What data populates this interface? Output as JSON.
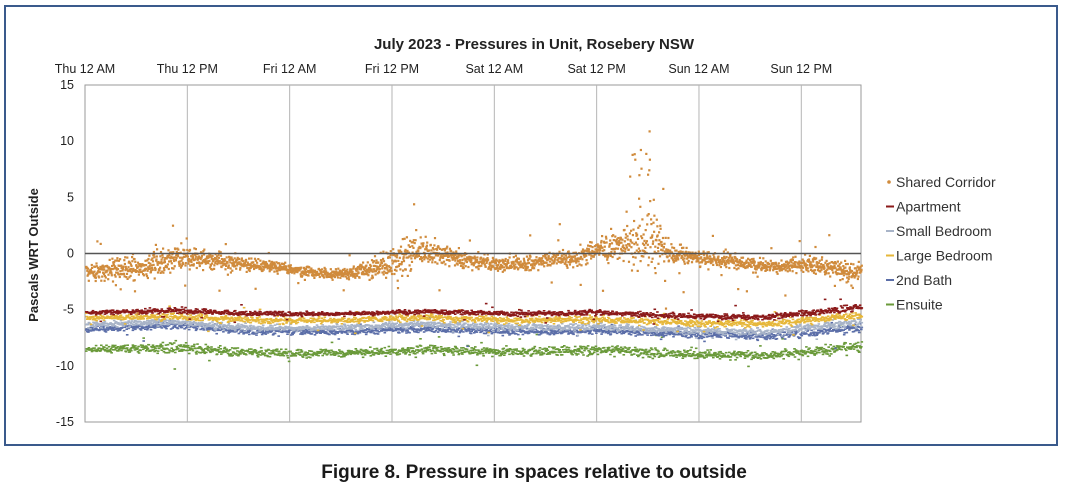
{
  "caption": "Figure 8. Pressure in spaces relative to outside",
  "chart_data": {
    "type": "scatter",
    "title": "July 2023 - Pressures in Unit, Rosebery NSW",
    "xlabel": "",
    "ylabel": "Pascals WRT Outside",
    "ylim": [
      -15,
      15
    ],
    "yticks": [
      15,
      10,
      5,
      0,
      -5,
      -10,
      -15
    ],
    "xlim": [
      "Thu 12 AM",
      "Sun 7 PM"
    ],
    "xticks": [
      "Thu 12 AM",
      "Thu 12 PM",
      "Fri 12 AM",
      "Fri 12 PM",
      "Sat 12 AM",
      "Sat 12 PM",
      "Sun 12 AM",
      "Sun 12 PM"
    ],
    "x_axis_position": "top",
    "grid": "vertical",
    "zero_line": true,
    "legend_position": "right",
    "series": [
      {
        "name": "Shared Corridor",
        "color": "#d08b3c",
        "marker": "dot",
        "x_hours": [
          0,
          3,
          6,
          9,
          12,
          15,
          18,
          21,
          24,
          27,
          30,
          33,
          36,
          39,
          42,
          45,
          48,
          51,
          54,
          57,
          60,
          63,
          66,
          69,
          72,
          75,
          78,
          81,
          84,
          87,
          90
        ],
        "mean": [
          -1.5,
          -1.3,
          -1.2,
          -0.6,
          -0.3,
          -0.4,
          -0.8,
          -1.0,
          -1.3,
          -1.6,
          -1.7,
          -1.4,
          -0.5,
          0.2,
          0.0,
          -0.6,
          -0.9,
          -0.8,
          -0.6,
          -0.3,
          0.3,
          0.9,
          1.5,
          0.0,
          -0.3,
          -0.5,
          -0.9,
          -1.1,
          -0.8,
          -1.1,
          -1.7
        ],
        "spread": [
          0.8,
          1.2,
          1.3,
          1.4,
          1.4,
          1.0,
          0.8,
          0.7,
          0.6,
          0.6,
          0.6,
          1.0,
          1.8,
          2.0,
          1.2,
          0.9,
          0.8,
          0.8,
          0.8,
          1.0,
          1.5,
          2.0,
          4.0,
          0.9,
          0.8,
          0.8,
          0.7,
          0.7,
          1.1,
          0.8,
          1.4
        ]
      },
      {
        "name": "Apartment",
        "color": "#8b1a1a",
        "marker": "dash",
        "x_hours": [
          0,
          10,
          20,
          30,
          40,
          50,
          60,
          70,
          80,
          90
        ],
        "mean": [
          -5.2,
          -5.0,
          -5.3,
          -5.3,
          -5.1,
          -5.3,
          -5.2,
          -5.5,
          -5.6,
          -4.8
        ],
        "spread": [
          0.2,
          0.3,
          0.3,
          0.2,
          0.3,
          0.3,
          0.3,
          0.3,
          0.3,
          0.4
        ]
      },
      {
        "name": "Small Bedroom",
        "color": "#a8b4c8",
        "marker": "dash",
        "x_hours": [
          0,
          10,
          20,
          30,
          40,
          50,
          60,
          70,
          80,
          90
        ],
        "mean": [
          -6.3,
          -6.0,
          -6.6,
          -6.5,
          -6.2,
          -6.5,
          -6.4,
          -6.8,
          -6.9,
          -6.1
        ],
        "spread": [
          0.3,
          0.4,
          0.4,
          0.3,
          0.4,
          0.4,
          0.4,
          0.4,
          0.4,
          0.5
        ]
      },
      {
        "name": "Large Bedroom",
        "color": "#e6b73a",
        "marker": "dash",
        "x_hours": [
          0,
          10,
          20,
          30,
          40,
          50,
          60,
          70,
          80,
          90
        ],
        "mean": [
          -5.7,
          -5.5,
          -5.9,
          -5.9,
          -5.6,
          -5.9,
          -5.8,
          -6.1,
          -6.2,
          -5.5
        ],
        "spread": [
          0.3,
          0.4,
          0.4,
          0.3,
          0.4,
          0.4,
          0.4,
          0.4,
          0.4,
          0.4
        ]
      },
      {
        "name": "2nd Bath",
        "color": "#5b6ea8",
        "marker": "dash",
        "x_hours": [
          0,
          10,
          20,
          30,
          40,
          50,
          60,
          70,
          80,
          90
        ],
        "mean": [
          -6.7,
          -6.3,
          -6.9,
          -6.9,
          -6.6,
          -6.9,
          -6.8,
          -7.1,
          -7.3,
          -6.6
        ],
        "spread": [
          0.3,
          0.4,
          0.4,
          0.3,
          0.4,
          0.4,
          0.4,
          0.4,
          0.4,
          0.5
        ]
      },
      {
        "name": "Ensuite",
        "color": "#6a9a3a",
        "marker": "dash",
        "x_hours": [
          0,
          10,
          20,
          30,
          40,
          50,
          60,
          70,
          80,
          90
        ],
        "mean": [
          -8.5,
          -8.3,
          -8.8,
          -8.8,
          -8.5,
          -8.7,
          -8.5,
          -8.9,
          -9.0,
          -8.3
        ],
        "spread": [
          0.3,
          0.6,
          0.5,
          0.4,
          0.5,
          0.5,
          0.6,
          0.5,
          0.5,
          0.6
        ]
      }
    ]
  }
}
